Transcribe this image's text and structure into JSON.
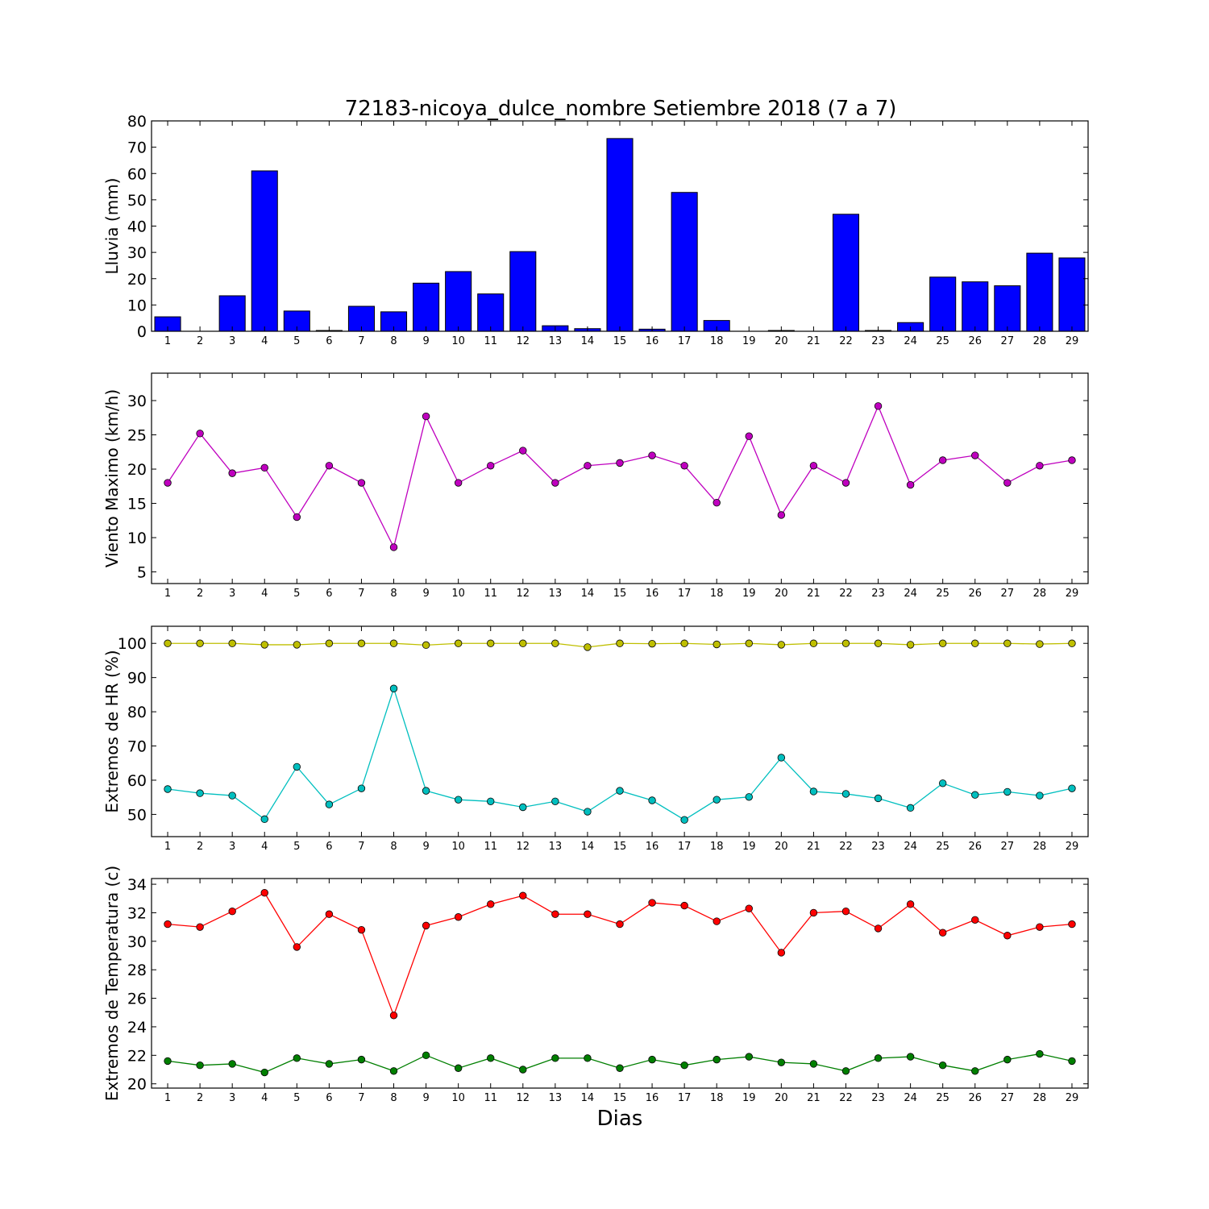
{
  "figure": {
    "title": "72183-nicoya_dulce_nombre Setiembre 2018  (7 a 7)",
    "xlabel": "Dias"
  },
  "chart_data": [
    {
      "type": "bar",
      "ylabel": "Lluvia (mm)",
      "ylim": [
        0,
        80
      ],
      "yticks": [
        0,
        10,
        20,
        30,
        40,
        50,
        60,
        70,
        80
      ],
      "xlim": [
        0.5,
        29.5
      ],
      "x": [
        1,
        2,
        3,
        4,
        5,
        6,
        7,
        8,
        9,
        10,
        11,
        12,
        13,
        14,
        15,
        16,
        17,
        18,
        19,
        20,
        21,
        22,
        23,
        24,
        25,
        26,
        27,
        28,
        29
      ],
      "series": [
        {
          "color": "#0000ff",
          "values": [
            5.5,
            0,
            13.5,
            61,
            7.7,
            0.3,
            9.5,
            7.4,
            18.3,
            22.7,
            14.2,
            30.3,
            2.1,
            1,
            73.3,
            0.8,
            52.8,
            4.1,
            0,
            0.3,
            0,
            44.5,
            0.3,
            3.3,
            20.6,
            18.8,
            17.3,
            29.7,
            27.9
          ]
        }
      ]
    },
    {
      "type": "line",
      "ylabel": "Viento Maximo (km/h)",
      "ylim": [
        3.3,
        34
      ],
      "yticks": [
        5,
        10,
        15,
        20,
        25,
        30
      ],
      "xlim": [
        0.5,
        29.5
      ],
      "x": [
        1,
        2,
        3,
        4,
        5,
        6,
        7,
        8,
        9,
        10,
        11,
        12,
        13,
        14,
        15,
        16,
        17,
        18,
        19,
        20,
        21,
        22,
        23,
        24,
        25,
        26,
        27,
        28,
        29
      ],
      "series": [
        {
          "color": "#bf00bf",
          "values": [
            18,
            25.2,
            19.4,
            20.2,
            13,
            20.5,
            18,
            8.6,
            27.7,
            18,
            20.5,
            22.7,
            18,
            20.5,
            20.9,
            22,
            20.5,
            15.1,
            24.8,
            13.3,
            20.5,
            18,
            29.2,
            17.7,
            21.3,
            22,
            18,
            20.5,
            21.3
          ]
        }
      ]
    },
    {
      "type": "line",
      "ylabel": "Extremos de HR (%)",
      "ylim": [
        43.5,
        105
      ],
      "yticks": [
        50,
        60,
        70,
        80,
        90,
        100
      ],
      "xlim": [
        0.5,
        29.5
      ],
      "x": [
        1,
        2,
        3,
        4,
        5,
        6,
        7,
        8,
        9,
        10,
        11,
        12,
        13,
        14,
        15,
        16,
        17,
        18,
        19,
        20,
        21,
        22,
        23,
        24,
        25,
        26,
        27,
        28,
        29
      ],
      "series": [
        {
          "color": "#bfbf00",
          "values": [
            100,
            100,
            100,
            99.6,
            99.6,
            100,
            100,
            100,
            99.5,
            100,
            100,
            100,
            100,
            98.9,
            100,
            99.9,
            100,
            99.7,
            100,
            99.6,
            100,
            100,
            100,
            99.6,
            100,
            100,
            100,
            99.8,
            100
          ]
        },
        {
          "color": "#00bfbf",
          "values": [
            57.4,
            56.2,
            55.5,
            48.6,
            63.9,
            52.9,
            57.6,
            86.8,
            56.9,
            54.3,
            53.8,
            52.1,
            53.8,
            50.8,
            56.9,
            54.1,
            48.4,
            54.3,
            55.1,
            66.6,
            56.7,
            56,
            54.7,
            51.9,
            59.1,
            55.7,
            56.6,
            55.5,
            57.6
          ]
        }
      ]
    },
    {
      "type": "line",
      "ylabel": "Extremos de Temperatura (c)",
      "ylim": [
        19.7,
        34.4
      ],
      "yticks": [
        20,
        22,
        24,
        26,
        28,
        30,
        32,
        34
      ],
      "xlim": [
        0.5,
        29.5
      ],
      "x": [
        1,
        2,
        3,
        4,
        5,
        6,
        7,
        8,
        9,
        10,
        11,
        12,
        13,
        14,
        15,
        16,
        17,
        18,
        19,
        20,
        21,
        22,
        23,
        24,
        25,
        26,
        27,
        28,
        29
      ],
      "series": [
        {
          "color": "#ff0000",
          "values": [
            31.2,
            31,
            32.1,
            33.4,
            29.6,
            31.9,
            30.8,
            24.8,
            31.1,
            31.7,
            32.6,
            33.2,
            31.9,
            31.9,
            31.2,
            32.7,
            32.5,
            31.4,
            32.3,
            29.2,
            32,
            32.1,
            30.9,
            32.6,
            30.6,
            31.5,
            30.4,
            31,
            31.2
          ]
        },
        {
          "color": "#007f00",
          "values": [
            21.6,
            21.3,
            21.4,
            20.8,
            21.8,
            21.4,
            21.7,
            20.9,
            22,
            21.1,
            21.8,
            21,
            21.8,
            21.8,
            21.1,
            21.7,
            21.3,
            21.7,
            21.9,
            21.5,
            21.4,
            20.9,
            21.8,
            21.9,
            21.3,
            20.9,
            21.7,
            22.1,
            21.6
          ]
        }
      ]
    }
  ]
}
